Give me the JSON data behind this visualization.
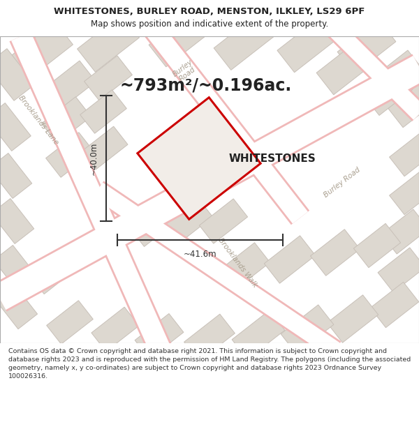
{
  "title_line1": "WHITESTONES, BURLEY ROAD, MENSTON, ILKLEY, LS29 6PF",
  "title_line2": "Map shows position and indicative extent of the property.",
  "area_text": "~793m²/~0.196ac.",
  "property_label": "WHITESTONES",
  "dim_horizontal": "~41.6m",
  "dim_vertical": "~40.0m",
  "footer_text": "Contains OS data © Crown copyright and database right 2021. This information is subject to Crown copyright and database rights 2023 and is reproduced with the permission of HM Land Registry. The polygons (including the associated geometry, namely x, y co-ordinates) are subject to Crown copyright and database rights 2023 Ordnance Survey 100026316.",
  "bg_color": "#f2ede8",
  "map_bg": "#f2ede8",
  "road_color": "#ffffff",
  "building_fill": "#ddd8d0",
  "building_edge": "#c8c0b8",
  "plot_outline_color": "#cc0000",
  "plot_fill": "#f2ede8",
  "street_label_color": "#aaa090",
  "dimension_line_color": "#333333",
  "text_color": "#222222",
  "footer_color": "#333333",
  "road_edge_color": "#f0b8b8"
}
